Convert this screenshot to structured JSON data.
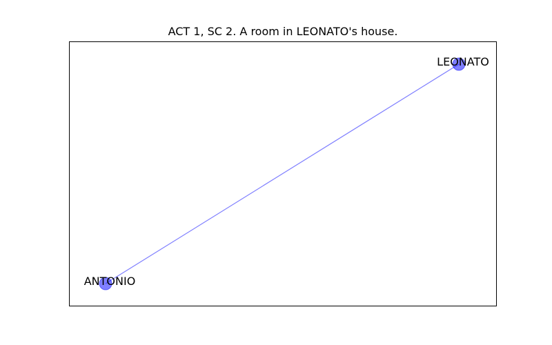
{
  "title": "ACT 1, SC 2. A room in LEONATO's house.",
  "graph": {
    "nodes": [
      {
        "id": "LEONATO",
        "label": "LEONATO"
      },
      {
        "id": "ANTONIO",
        "label": "ANTONIO"
      }
    ],
    "edges": [
      {
        "source": "LEONATO",
        "target": "ANTONIO"
      }
    ]
  },
  "colors": {
    "node_fill": "#0000ff",
    "node_alpha": 0.5,
    "edge": "#0000ff",
    "edge_alpha": 0.5,
    "label": "#000000",
    "frame": "#000000",
    "background": "#ffffff"
  }
}
